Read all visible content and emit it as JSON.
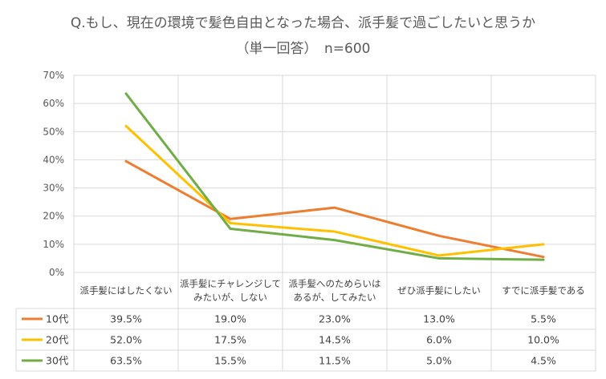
{
  "chart_data": {
    "type": "line",
    "title": "Q.もし、現在の環境で髪色自由となった場合、派手髪で過ごしたいと思うか",
    "subtitle": "（単一回答）　n=600",
    "xlabel": "",
    "ylabel": "",
    "ylim": [
      0,
      70
    ],
    "yticks": [
      "0%",
      "10%",
      "20%",
      "30%",
      "40%",
      "50%",
      "60%",
      "70%"
    ],
    "grid": true,
    "legend": "data-table-left",
    "categories": [
      [
        "派手髪にはしたくない"
      ],
      [
        "派手髪にチャレンジして",
        "みたいが、しない"
      ],
      [
        "派手髪へのためらいは",
        "あるが、してみたい"
      ],
      [
        "ぜひ派手髪にしたい"
      ],
      [
        "すでに派手髪である"
      ]
    ],
    "series": [
      {
        "name": "10代",
        "color": "#ED7D31",
        "values": [
          39.5,
          19.0,
          23.0,
          13.0,
          5.5
        ],
        "labels": [
          "39.5%",
          "19.0%",
          "23.0%",
          "13.0%",
          "5.5%"
        ]
      },
      {
        "name": "20代",
        "color": "#FFC000",
        "values": [
          52.0,
          17.5,
          14.5,
          6.0,
          10.0
        ],
        "labels": [
          "52.0%",
          "17.5%",
          "14.5%",
          "6.0%",
          "10.0%"
        ]
      },
      {
        "name": "30代",
        "color": "#70AD47",
        "values": [
          63.5,
          15.5,
          11.5,
          5.0,
          4.5
        ],
        "labels": [
          "63.5%",
          "15.5%",
          "11.5%",
          "5.0%",
          "4.5%"
        ]
      }
    ]
  }
}
